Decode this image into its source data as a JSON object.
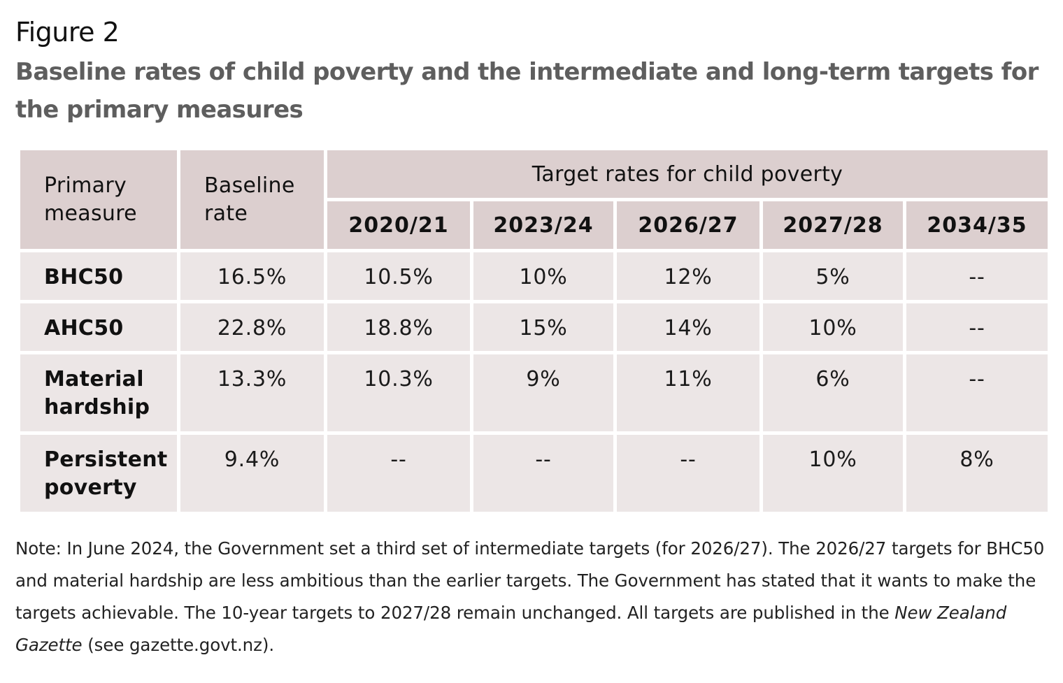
{
  "figure": {
    "label": "Figure 2",
    "title": "Baseline rates of child poverty and the intermediate and long-term targets for the primary measures"
  },
  "table": {
    "header": {
      "measure": "Primary measure",
      "baseline": "Baseline rate",
      "target_group": "Target rates for child poverty",
      "years": [
        "2020/21",
        "2023/24",
        "2026/27",
        "2027/28",
        "2034/35"
      ]
    },
    "rows": [
      {
        "measure": "BHC50",
        "baseline": "16.5%",
        "targets": [
          "10.5%",
          "10%",
          "12%",
          "5%",
          "--"
        ]
      },
      {
        "measure": "AHC50",
        "baseline": "22.8%",
        "targets": [
          "18.8%",
          "15%",
          "14%",
          "10%",
          "--"
        ]
      },
      {
        "measure": "Material hardship",
        "baseline": "13.3%",
        "targets": [
          "10.3%",
          "9%",
          "11%",
          "6%",
          "--"
        ]
      },
      {
        "measure": "Persistent poverty",
        "baseline": "9.4%",
        "targets": [
          "--",
          "--",
          "--",
          "10%",
          "8%"
        ]
      }
    ]
  },
  "note": {
    "text": "Note: In June 2024, the Government set a third set of intermediate targets (for 2026/27). The 2026/27 targets for BHC50 and material hardship are less ambitious than the earlier targets. The Government has stated that it wants to make the targets achievable. The 10-year targets to 2027/28 remain unchanged. All targets are published in the ",
    "italic": "New Zealand Gazette",
    "tail": " (see gazette.govt.nz)."
  },
  "colors": {
    "header_bg": "#dccfcf",
    "body_bg": "#ece6e6",
    "title_color": "#5e5e5e"
  }
}
